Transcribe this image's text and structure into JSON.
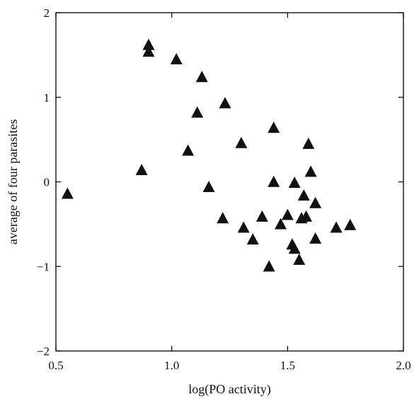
{
  "chart_data": {
    "type": "scatter",
    "title": "",
    "xlabel": "log(PO activity)",
    "ylabel": "average of four parasites",
    "xlim": [
      0.5,
      2.0
    ],
    "ylim": [
      -2,
      2
    ],
    "xticks": [
      0.5,
      1.0,
      1.5,
      2.0
    ],
    "xtick_labels": [
      "0.5",
      "1.0",
      "1.5",
      "2.0"
    ],
    "yticks": [
      -2,
      -1,
      0,
      1,
      2
    ],
    "ytick_labels": [
      "−2",
      "−1",
      "0",
      "1",
      "2"
    ],
    "grid": false,
    "marker": "triangle",
    "marker_color": "#111111",
    "series": [
      {
        "points": [
          {
            "x": 0.55,
            "y": -0.15
          },
          {
            "x": 0.87,
            "y": 0.13
          },
          {
            "x": 0.9,
            "y": 1.61
          },
          {
            "x": 0.9,
            "y": 1.53
          },
          {
            "x": 1.02,
            "y": 1.44
          },
          {
            "x": 1.07,
            "y": 0.36
          },
          {
            "x": 1.11,
            "y": 0.81
          },
          {
            "x": 1.13,
            "y": 1.23
          },
          {
            "x": 1.16,
            "y": -0.07
          },
          {
            "x": 1.22,
            "y": -0.44
          },
          {
            "x": 1.23,
            "y": 0.92
          },
          {
            "x": 1.3,
            "y": 0.45
          },
          {
            "x": 1.31,
            "y": -0.55
          },
          {
            "x": 1.35,
            "y": -0.69
          },
          {
            "x": 1.39,
            "y": -0.42
          },
          {
            "x": 1.42,
            "y": -1.01
          },
          {
            "x": 1.44,
            "y": 0.63
          },
          {
            "x": 1.44,
            "y": -0.01
          },
          {
            "x": 1.47,
            "y": -0.51
          },
          {
            "x": 1.5,
            "y": -0.4
          },
          {
            "x": 1.52,
            "y": -0.75
          },
          {
            "x": 1.53,
            "y": -0.8
          },
          {
            "x": 1.53,
            "y": -0.02
          },
          {
            "x": 1.55,
            "y": -0.93
          },
          {
            "x": 1.56,
            "y": -0.44
          },
          {
            "x": 1.57,
            "y": -0.17
          },
          {
            "x": 1.58,
            "y": -0.42
          },
          {
            "x": 1.59,
            "y": 0.44
          },
          {
            "x": 1.6,
            "y": 0.11
          },
          {
            "x": 1.62,
            "y": -0.26
          },
          {
            "x": 1.62,
            "y": -0.68
          },
          {
            "x": 1.71,
            "y": -0.55
          },
          {
            "x": 1.77,
            "y": -0.52
          }
        ]
      }
    ]
  }
}
